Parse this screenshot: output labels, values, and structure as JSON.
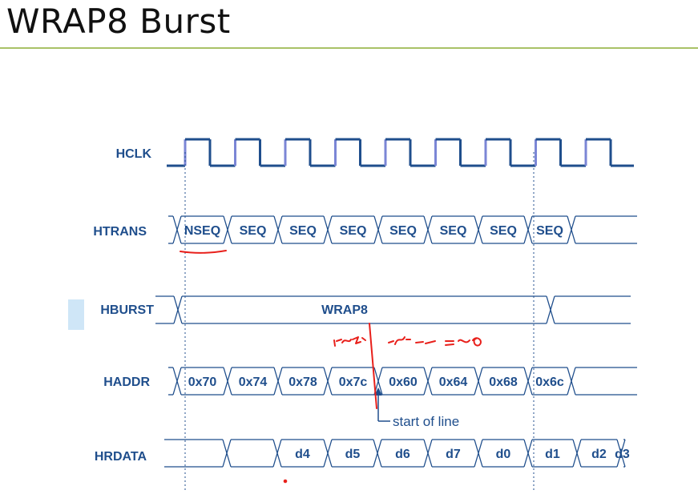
{
  "slide": {
    "title": "WRAP8 Burst"
  },
  "colors": {
    "signal": "#1f4e8c",
    "clock_rise": "#7b86d6",
    "title_rule": "#a9c267",
    "highlight": "#cfe6f7",
    "annotation_red": "#e8201b"
  },
  "signals": {
    "hclk": {
      "label": "HCLK",
      "cycles": 9
    },
    "htrans": {
      "label": "HTRANS",
      "values": [
        "NSEQ",
        "SEQ",
        "SEQ",
        "SEQ",
        "SEQ",
        "SEQ",
        "SEQ",
        "SEQ",
        ""
      ]
    },
    "hburst": {
      "label": "HBURST",
      "value": "WRAP8"
    },
    "haddr": {
      "label": "HADDR",
      "values": [
        "0x70",
        "0x74",
        "0x78",
        "0x7c",
        "0x60",
        "0x64",
        "0x68",
        "0x6c",
        ""
      ]
    },
    "hrdata": {
      "label": "HRDATA",
      "values": [
        "",
        "d4",
        "d5",
        "d6",
        "d7",
        "d0",
        "d1",
        "d2",
        "d3"
      ]
    }
  },
  "annotation": {
    "label": "start of line"
  }
}
